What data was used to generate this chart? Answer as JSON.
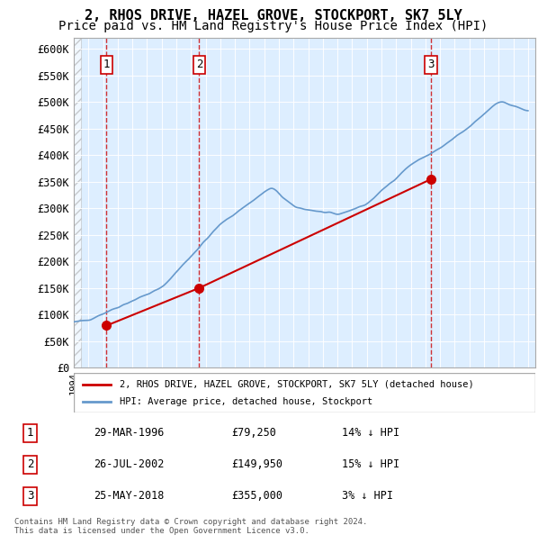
{
  "title": "2, RHOS DRIVE, HAZEL GROVE, STOCKPORT, SK7 5LY",
  "subtitle": "Price paid vs. HM Land Registry's House Price Index (HPI)",
  "ylabel_ticks": [
    "£0",
    "£50K",
    "£100K",
    "£150K",
    "£200K",
    "£250K",
    "£300K",
    "£350K",
    "£400K",
    "£450K",
    "£500K",
    "£550K",
    "£600K"
  ],
  "ytick_values": [
    0,
    50000,
    100000,
    150000,
    200000,
    250000,
    300000,
    350000,
    400000,
    450000,
    500000,
    550000,
    600000
  ],
  "ylim": [
    0,
    620000
  ],
  "xlim_start": 1994.0,
  "xlim_end": 2025.5,
  "purchases": [
    {
      "year": 1996.24,
      "price": 79250,
      "label": "1"
    },
    {
      "year": 2002.56,
      "price": 149950,
      "label": "2"
    },
    {
      "year": 2018.4,
      "price": 355000,
      "label": "3"
    }
  ],
  "purchase_color": "#cc0000",
  "hpi_color": "#6699cc",
  "bg_chart_color": "#ddeeff",
  "bg_hatch_color": "#cccccc",
  "grid_color": "#ffffff",
  "vline_color": "#cc0000",
  "legend_items": [
    "2, RHOS DRIVE, HAZEL GROVE, STOCKPORT, SK7 5LY (detached house)",
    "HPI: Average price, detached house, Stockport"
  ],
  "table_rows": [
    {
      "num": "1",
      "date": "29-MAR-1996",
      "price": "£79,250",
      "pct": "14% ↓ HPI"
    },
    {
      "num": "2",
      "date": "26-JUL-2002",
      "price": "£149,950",
      "pct": "15% ↓ HPI"
    },
    {
      "num": "3",
      "date": "25-MAY-2018",
      "price": "£355,000",
      "pct": "3% ↓ HPI"
    }
  ],
  "footnote": "Contains HM Land Registry data © Crown copyright and database right 2024.\nThis data is licensed under the Open Government Licence v3.0.",
  "title_fontsize": 11,
  "subtitle_fontsize": 10
}
